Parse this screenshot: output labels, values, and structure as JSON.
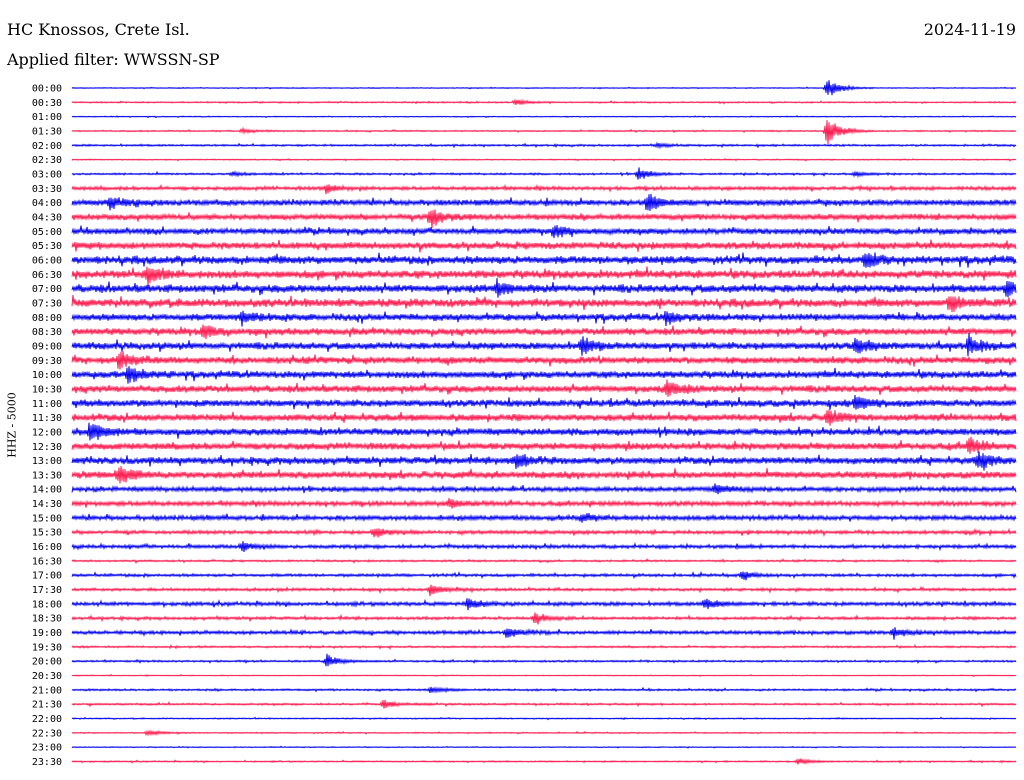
{
  "header": {
    "station": "HC Knossos, Crete Isl.",
    "date": "2024-11-19",
    "filter": "Applied filter: WWSSN-SP"
  },
  "chart_data": {
    "type": "line",
    "title": "HC Knossos, Crete Isl.",
    "ylabel": "HHZ - 5000",
    "rows": [
      "00:00",
      "00:30",
      "01:00",
      "01:30",
      "02:00",
      "02:30",
      "03:00",
      "03:30",
      "04:00",
      "04:30",
      "05:00",
      "05:30",
      "06:00",
      "06:30",
      "07:00",
      "07:30",
      "08:00",
      "08:30",
      "09:00",
      "09:30",
      "10:00",
      "10:30",
      "11:00",
      "11:30",
      "12:00",
      "12:30",
      "13:00",
      "13:30",
      "14:00",
      "14:30",
      "15:00",
      "15:30",
      "16:00",
      "16:30",
      "17:00",
      "17:30",
      "18:00",
      "18:30",
      "19:00",
      "19:30",
      "20:00",
      "20:30",
      "21:00",
      "21:30",
      "22:00",
      "22:30",
      "23:00",
      "23:30"
    ],
    "noise_level": [
      0.4,
      0.6,
      0.4,
      0.6,
      0.8,
      0.5,
      0.8,
      1.5,
      2.5,
      2.5,
      2.5,
      3,
      3.5,
      3.5,
      3.5,
      3.5,
      3,
      3,
      3,
      3,
      3,
      3,
      3,
      3,
      3,
      3,
      3,
      3,
      2,
      2,
      2,
      1.5,
      1.5,
      0.8,
      1.2,
      1.2,
      1.6,
      1.2,
      1.5,
      0.8,
      0.8,
      0.4,
      0.8,
      0.8,
      0.5,
      0.5,
      0.4,
      0.6
    ],
    "events": [
      {
        "row": 0,
        "t": 0.8,
        "amp": 10
      },
      {
        "row": 1,
        "t": 0.47,
        "amp": 3
      },
      {
        "row": 3,
        "t": 0.18,
        "amp": 2
      },
      {
        "row": 3,
        "t": 0.8,
        "amp": 16
      },
      {
        "row": 4,
        "t": 0.62,
        "amp": 2
      },
      {
        "row": 6,
        "t": 0.6,
        "amp": 6
      },
      {
        "row": 6,
        "t": 0.17,
        "amp": 2
      },
      {
        "row": 6,
        "t": 0.83,
        "amp": 2
      },
      {
        "row": 7,
        "t": 0.27,
        "amp": 4
      },
      {
        "row": 8,
        "t": 0.04,
        "amp": 6
      },
      {
        "row": 8,
        "t": 0.61,
        "amp": 10
      },
      {
        "row": 9,
        "t": 0.38,
        "amp": 10
      },
      {
        "row": 10,
        "t": 0.51,
        "amp": 6
      },
      {
        "row": 12,
        "t": 0.84,
        "amp": 8
      },
      {
        "row": 13,
        "t": 0.08,
        "amp": 8
      },
      {
        "row": 14,
        "t": 0.45,
        "amp": 6
      },
      {
        "row": 14,
        "t": 0.99,
        "amp": 8
      },
      {
        "row": 15,
        "t": 0.93,
        "amp": 8
      },
      {
        "row": 16,
        "t": 0.18,
        "amp": 6
      },
      {
        "row": 16,
        "t": 0.63,
        "amp": 6
      },
      {
        "row": 17,
        "t": 0.14,
        "amp": 6
      },
      {
        "row": 18,
        "t": 0.54,
        "amp": 8
      },
      {
        "row": 18,
        "t": 0.83,
        "amp": 8
      },
      {
        "row": 18,
        "t": 0.95,
        "amp": 8
      },
      {
        "row": 19,
        "t": 0.05,
        "amp": 8
      },
      {
        "row": 20,
        "t": 0.06,
        "amp": 8
      },
      {
        "row": 21,
        "t": 0.63,
        "amp": 8
      },
      {
        "row": 22,
        "t": 0.83,
        "amp": 8
      },
      {
        "row": 23,
        "t": 0.8,
        "amp": 8
      },
      {
        "row": 24,
        "t": 0.02,
        "amp": 12
      },
      {
        "row": 25,
        "t": 0.95,
        "amp": 8
      },
      {
        "row": 26,
        "t": 0.47,
        "amp": 8
      },
      {
        "row": 26,
        "t": 0.96,
        "amp": 8
      },
      {
        "row": 27,
        "t": 0.05,
        "amp": 8
      },
      {
        "row": 28,
        "t": 0.68,
        "amp": 5
      },
      {
        "row": 29,
        "t": 0.4,
        "amp": 5
      },
      {
        "row": 30,
        "t": 0.54,
        "amp": 4
      },
      {
        "row": 31,
        "t": 0.32,
        "amp": 5
      },
      {
        "row": 32,
        "t": 0.18,
        "amp": 4
      },
      {
        "row": 34,
        "t": 0.71,
        "amp": 4
      },
      {
        "row": 35,
        "t": 0.38,
        "amp": 6
      },
      {
        "row": 36,
        "t": 0.42,
        "amp": 6
      },
      {
        "row": 36,
        "t": 0.67,
        "amp": 6
      },
      {
        "row": 37,
        "t": 0.49,
        "amp": 6
      },
      {
        "row": 38,
        "t": 0.46,
        "amp": 6
      },
      {
        "row": 38,
        "t": 0.87,
        "amp": 5
      },
      {
        "row": 40,
        "t": 0.27,
        "amp": 6
      },
      {
        "row": 42,
        "t": 0.38,
        "amp": 3
      },
      {
        "row": 43,
        "t": 0.33,
        "amp": 4
      },
      {
        "row": 45,
        "t": 0.08,
        "amp": 3
      },
      {
        "row": 47,
        "t": 0.77,
        "amp": 3
      }
    ],
    "colors": {
      "blue": "#0000ee",
      "red": "#ff1a4f"
    }
  }
}
